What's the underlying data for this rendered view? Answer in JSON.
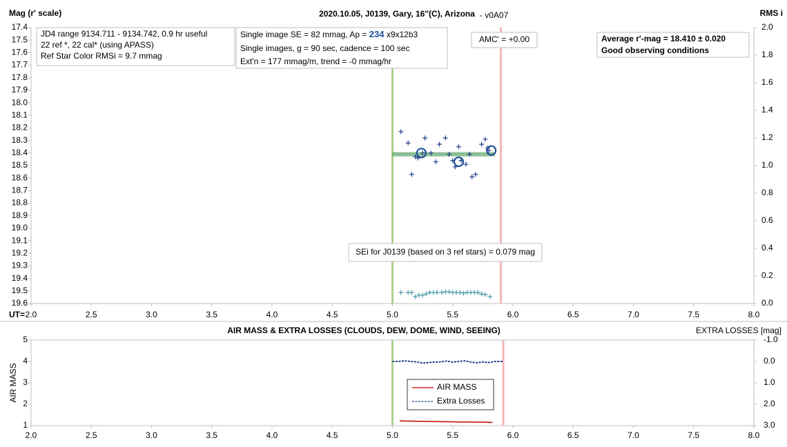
{
  "chart_data": [
    {
      "type": "scatter",
      "title": "2020.10.05, J0139, Gary, 16''(C), Arizona",
      "subtitle": "- v0A07",
      "ylabel": "Mag (r' scale)",
      "y2label": "RMS i",
      "xlabel": "UT=",
      "xlim": [
        2.0,
        8.0
      ],
      "xticks": [
        {
          "value": 2,
          "label": "2.0"
        },
        2.5,
        {
          "value": 3,
          "label": "3.0"
        },
        3.5,
        {
          "value": 4,
          "label": "4.0"
        },
        4.5,
        {
          "value": 5,
          "label": "5.0"
        },
        5.5,
        {
          "value": 6,
          "label": "6.0"
        },
        6.5,
        {
          "value": 7,
          "label": "7.0"
        },
        7.5,
        {
          "value": 8,
          "label": "8.0"
        }
      ],
      "ylim": [
        17.4,
        19.6
      ],
      "y_reversed": true,
      "yticks": [
        17.4,
        17.5,
        17.6,
        17.7,
        17.8,
        17.9,
        {
          "value": 18,
          "label": "18.0"
        },
        18.1,
        18.2,
        18.3,
        18.4,
        18.5,
        18.6,
        18.7,
        18.8,
        18.9,
        {
          "value": 19,
          "label": "19.0"
        },
        19.1,
        19.2,
        19.3,
        19.4,
        19.5,
        19.6
      ],
      "y2lim": [
        0,
        2.0
      ],
      "y2ticks": [
        {
          "value": 0,
          "label": "0.0"
        },
        0.2,
        0.4,
        0.6,
        0.8,
        {
          "value": 1,
          "label": "1.0"
        },
        1.2,
        1.4,
        1.6,
        1.8,
        {
          "value": 2,
          "label": "2.0"
        }
      ],
      "vlines": [
        {
          "x": 5.0,
          "color": "#a9d18e"
        },
        {
          "x": 5.9,
          "color": "#f4b6b6"
        }
      ],
      "series": [
        {
          "marker": "trend",
          "color": "#2e8b3e",
          "x": [
            5.0,
            5.85
          ],
          "values": [
            18.41,
            18.41
          ]
        },
        {
          "marker": "plus",
          "color": "#1f3d8a",
          "x": [
            5.07,
            5.13,
            5.16,
            5.19,
            5.21,
            5.25,
            5.27,
            5.32,
            5.36,
            5.39,
            5.44,
            5.47,
            5.5,
            5.52,
            5.55,
            5.57,
            5.61,
            5.64,
            5.66,
            5.69,
            5.74,
            5.77,
            5.79,
            5.8
          ],
          "values": [
            18.23,
            18.32,
            18.57,
            18.43,
            18.44,
            18.4,
            18.28,
            18.4,
            18.47,
            18.33,
            18.28,
            18.41,
            18.46,
            18.51,
            18.35,
            18.46,
            18.49,
            18.41,
            18.59,
            18.57,
            18.33,
            18.29,
            18.36,
            18.38
          ]
        },
        {
          "marker": "circle",
          "color": "#1f4e9a",
          "x": [
            5.24,
            5.55,
            5.82
          ],
          "values": [
            18.4,
            18.47,
            18.38
          ]
        },
        {
          "marker": "plus",
          "color": "#4a9ca6",
          "axis": "y2",
          "x": [
            5.07,
            5.13,
            5.16,
            5.19,
            5.22,
            5.25,
            5.28,
            5.31,
            5.34,
            5.37,
            5.41,
            5.44,
            5.47,
            5.5,
            5.53,
            5.56,
            5.59,
            5.62,
            5.65,
            5.68,
            5.71,
            5.74,
            5.77,
            5.81
          ],
          "values": [
            0.08,
            0.08,
            0.08,
            0.05,
            0.06,
            0.06,
            0.07,
            0.08,
            0.08,
            0.08,
            0.08,
            0.085,
            0.085,
            0.08,
            0.08,
            0.08,
            0.075,
            0.08,
            0.08,
            0.08,
            0.08,
            0.07,
            0.065,
            0.05
          ]
        }
      ],
      "annotations": [
        {
          "lines": [
            "JD4 range 9134.711 - 9134.742, 0.9 hr useful",
            "22 ref *, 22 cal* (using APASS)",
            "Ref Star Color RMSi = 9.7 mmag"
          ]
        },
        {
          "lines": [
            [
              "Single image SE = 82 mmag, Ap = ",
              "234",
              " x9x12b3"
            ],
            "Single images, g = 90 sec, cadence = 100 sec",
            "Ext'n = 177 mmag/m, trend = -0 mmag/hr"
          ]
        },
        {
          "lines": [
            "AMC' = +0.00"
          ]
        },
        {
          "lines": [
            "Average r'-mag =  18.410 ± 0.020",
            "Good observing conditions"
          ]
        },
        {
          "lines": [
            "SEi for J0139 (based on 3 ref stars) = 0.079 mag"
          ]
        }
      ]
    },
    {
      "type": "line",
      "title": "AIR MASS & EXTRA LOSSES (CLOUDS, DEW, DOME, WIND, SEEING)",
      "ylabel": "AIR MASS",
      "y2label": "EXTRA LOSSES [mag]",
      "xlim": [
        2.0,
        8.0
      ],
      "xticks": [
        {
          "value": 2,
          "label": "2.0"
        },
        2.5,
        {
          "value": 3,
          "label": "3.0"
        },
        3.5,
        {
          "value": 4,
          "label": "4.0"
        },
        4.5,
        {
          "value": 5,
          "label": "5.0"
        },
        5.5,
        {
          "value": 6,
          "label": "6.0"
        },
        6.5,
        {
          "value": 7,
          "label": "7.0"
        },
        7.5,
        {
          "value": 8,
          "label": "8.0"
        }
      ],
      "ylim": [
        1,
        5
      ],
      "yticks": [
        1,
        2,
        3,
        4,
        5
      ],
      "y2lim": [
        3.0,
        -1.0
      ],
      "y2ticks": [
        {
          "value": -1,
          "label": "-1.0"
        },
        {
          "value": 0,
          "label": "0.0"
        },
        {
          "value": 1,
          "label": "1.0"
        },
        {
          "value": 2,
          "label": "2.0"
        },
        {
          "value": 3,
          "label": "3.0"
        }
      ],
      "vlines": [
        {
          "x": 5.0,
          "color": "#a9d18e"
        },
        {
          "x": 5.92,
          "color": "#f4b6b6"
        }
      ],
      "legend": true,
      "series": [
        {
          "name": "AIR MASS",
          "color": "#c00000",
          "dashed": false,
          "x": [
            5.06,
            5.15,
            5.25,
            5.35,
            5.45,
            5.55,
            5.65,
            5.75,
            5.83
          ],
          "values": [
            1.22,
            1.21,
            1.2,
            1.19,
            1.18,
            1.17,
            1.17,
            1.16,
            1.15
          ]
        },
        {
          "name": "Extra Losses",
          "color": "#1f3d8a",
          "dashed": true,
          "axis": "y2",
          "x": [
            5.0,
            5.05,
            5.1,
            5.15,
            5.2,
            5.25,
            5.3,
            5.35,
            5.4,
            5.45,
            5.5,
            5.55,
            5.6,
            5.65,
            5.7,
            5.75,
            5.8,
            5.85,
            5.92
          ],
          "values": [
            0.0,
            0.0,
            -0.03,
            0.0,
            0.02,
            0.08,
            0.05,
            0.03,
            0.02,
            -0.02,
            0.03,
            0.0,
            -0.03,
            0.03,
            0.06,
            0.02,
            0.05,
            0.0,
            0.0
          ]
        }
      ]
    }
  ]
}
